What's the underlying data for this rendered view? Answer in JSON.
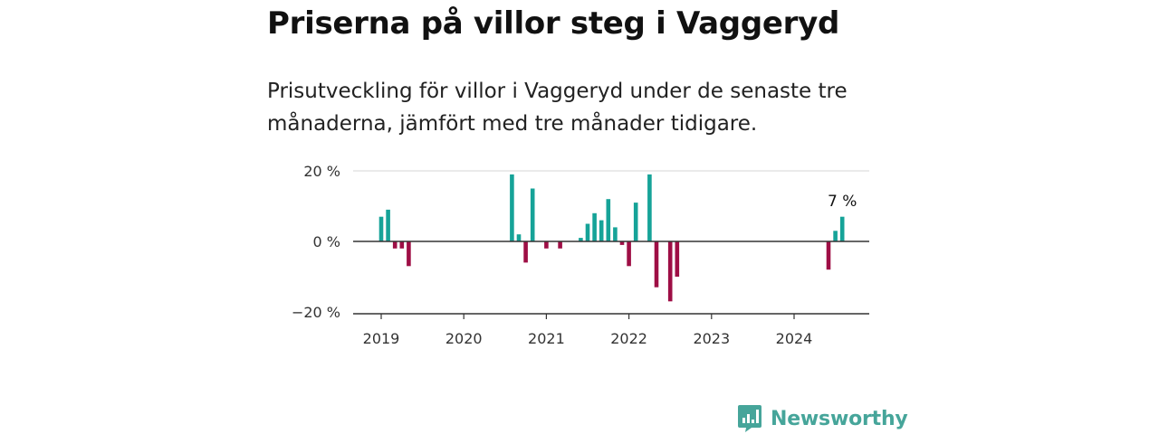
{
  "title": "Priserna på villor steg i Vaggeryd",
  "subtitle": "Prisutveckling för villor i Vaggeryd under de senaste tre månaderna, jämfört med tre månader tidigare.",
  "brand": {
    "name": "Newsworthy",
    "icon": "newsworthy-logo-icon",
    "color": "#46a59a"
  },
  "chart_data": {
    "type": "bar",
    "unit": "%",
    "ylim": [
      -20,
      20
    ],
    "y_ticks": [
      {
        "value": 20,
        "label": "20 %"
      },
      {
        "value": 0,
        "label": "0 %"
      },
      {
        "value": -20,
        "label": "−20 %"
      }
    ],
    "x_ticks": [
      "2019",
      "2020",
      "2021",
      "2022",
      "2023",
      "2024"
    ],
    "grid": true,
    "colors": {
      "positive": "#16a398",
      "negative": "#9e0e45"
    },
    "annotation": {
      "month": "2024-08",
      "label": "7 %"
    },
    "x": [
      "2019-01",
      "2019-02",
      "2019-03",
      "2019-04",
      "2019-05",
      "2020-08",
      "2020-09",
      "2020-10",
      "2020-11",
      "2021-01",
      "2021-03",
      "2021-06",
      "2021-07",
      "2021-08",
      "2021-09",
      "2021-10",
      "2021-11",
      "2021-12",
      "2022-01",
      "2022-02",
      "2022-04",
      "2022-05",
      "2022-07",
      "2022-08",
      "2022-09",
      "2024-06",
      "2024-07",
      "2024-08"
    ],
    "values": [
      7,
      9,
      -2,
      -2,
      -7,
      19,
      2,
      -6,
      15,
      -2,
      -2,
      1,
      5,
      8,
      6,
      12,
      4,
      -1,
      -7,
      11,
      19,
      -13,
      -17,
      -10,
      0,
      -8,
      3,
      7
    ]
  }
}
